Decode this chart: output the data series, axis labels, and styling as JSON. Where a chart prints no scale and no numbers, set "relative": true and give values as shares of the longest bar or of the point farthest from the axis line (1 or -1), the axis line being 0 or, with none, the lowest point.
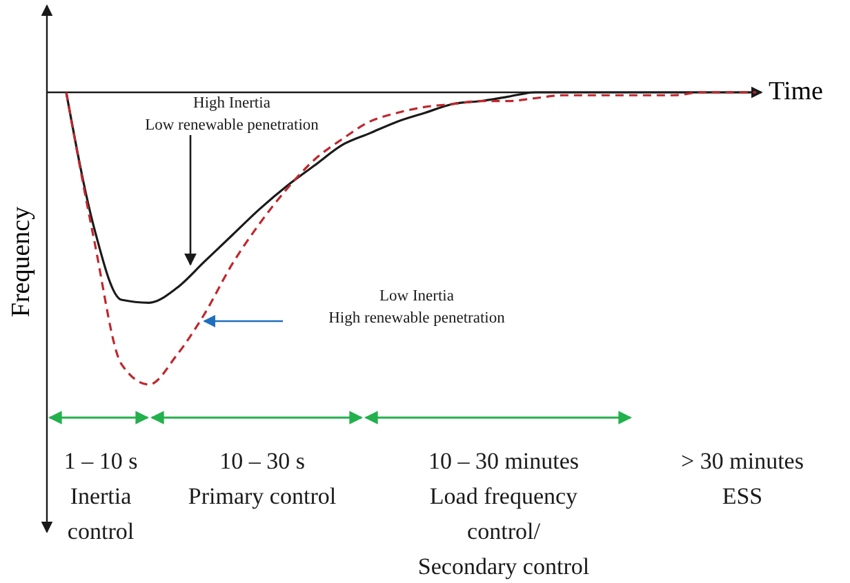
{
  "chart_data": {
    "type": "line",
    "relative": true,
    "xlabel": "Time",
    "ylabel": "Frequency",
    "categories": [
      null,
      null,
      null,
      null,
      null,
      null,
      null,
      null,
      null,
      null,
      null,
      null,
      null,
      null,
      null,
      null,
      null,
      null,
      null,
      null,
      null,
      null,
      null,
      null,
      null,
      null
    ],
    "series": [
      {
        "color": "#1a1a1a",
        "line_style": "solid",
        "values": [
          0,
          -0.46,
          -0.71,
          -0.72,
          -0.67,
          -0.58,
          -0.49,
          -0.4,
          -0.32,
          -0.25,
          -0.18,
          -0.14,
          -0.1,
          -0.07,
          -0.04,
          -0.03,
          -0.015,
          0,
          0,
          0,
          0,
          0,
          0,
          0,
          0,
          0
        ]
      },
      {
        "color": "#c0272d",
        "line_style": "dashed",
        "values": [
          0,
          -0.5,
          -0.93,
          -1,
          -0.9,
          -0.76,
          -0.59,
          -0.45,
          -0.33,
          -0.23,
          -0.16,
          -0.1,
          -0.07,
          -0.05,
          -0.04,
          -0.03,
          -0.03,
          -0.02,
          -0.01,
          -0.01,
          -0.01,
          -0.01,
          -0.01,
          0,
          0,
          0
        ]
      }
    ],
    "annotations": [
      "High Inertia\nLow renewable penetration",
      "Low Inertia\nHigh renewable penetration",
      "1 – 10 s\nInertia\ncontrol",
      "10 – 30 s\nPrimary control",
      "10 – 30 minutes\nLoad frequency\ncontrol/\nSecondary control",
      "> 30 minutes\nESS"
    ]
  }
}
